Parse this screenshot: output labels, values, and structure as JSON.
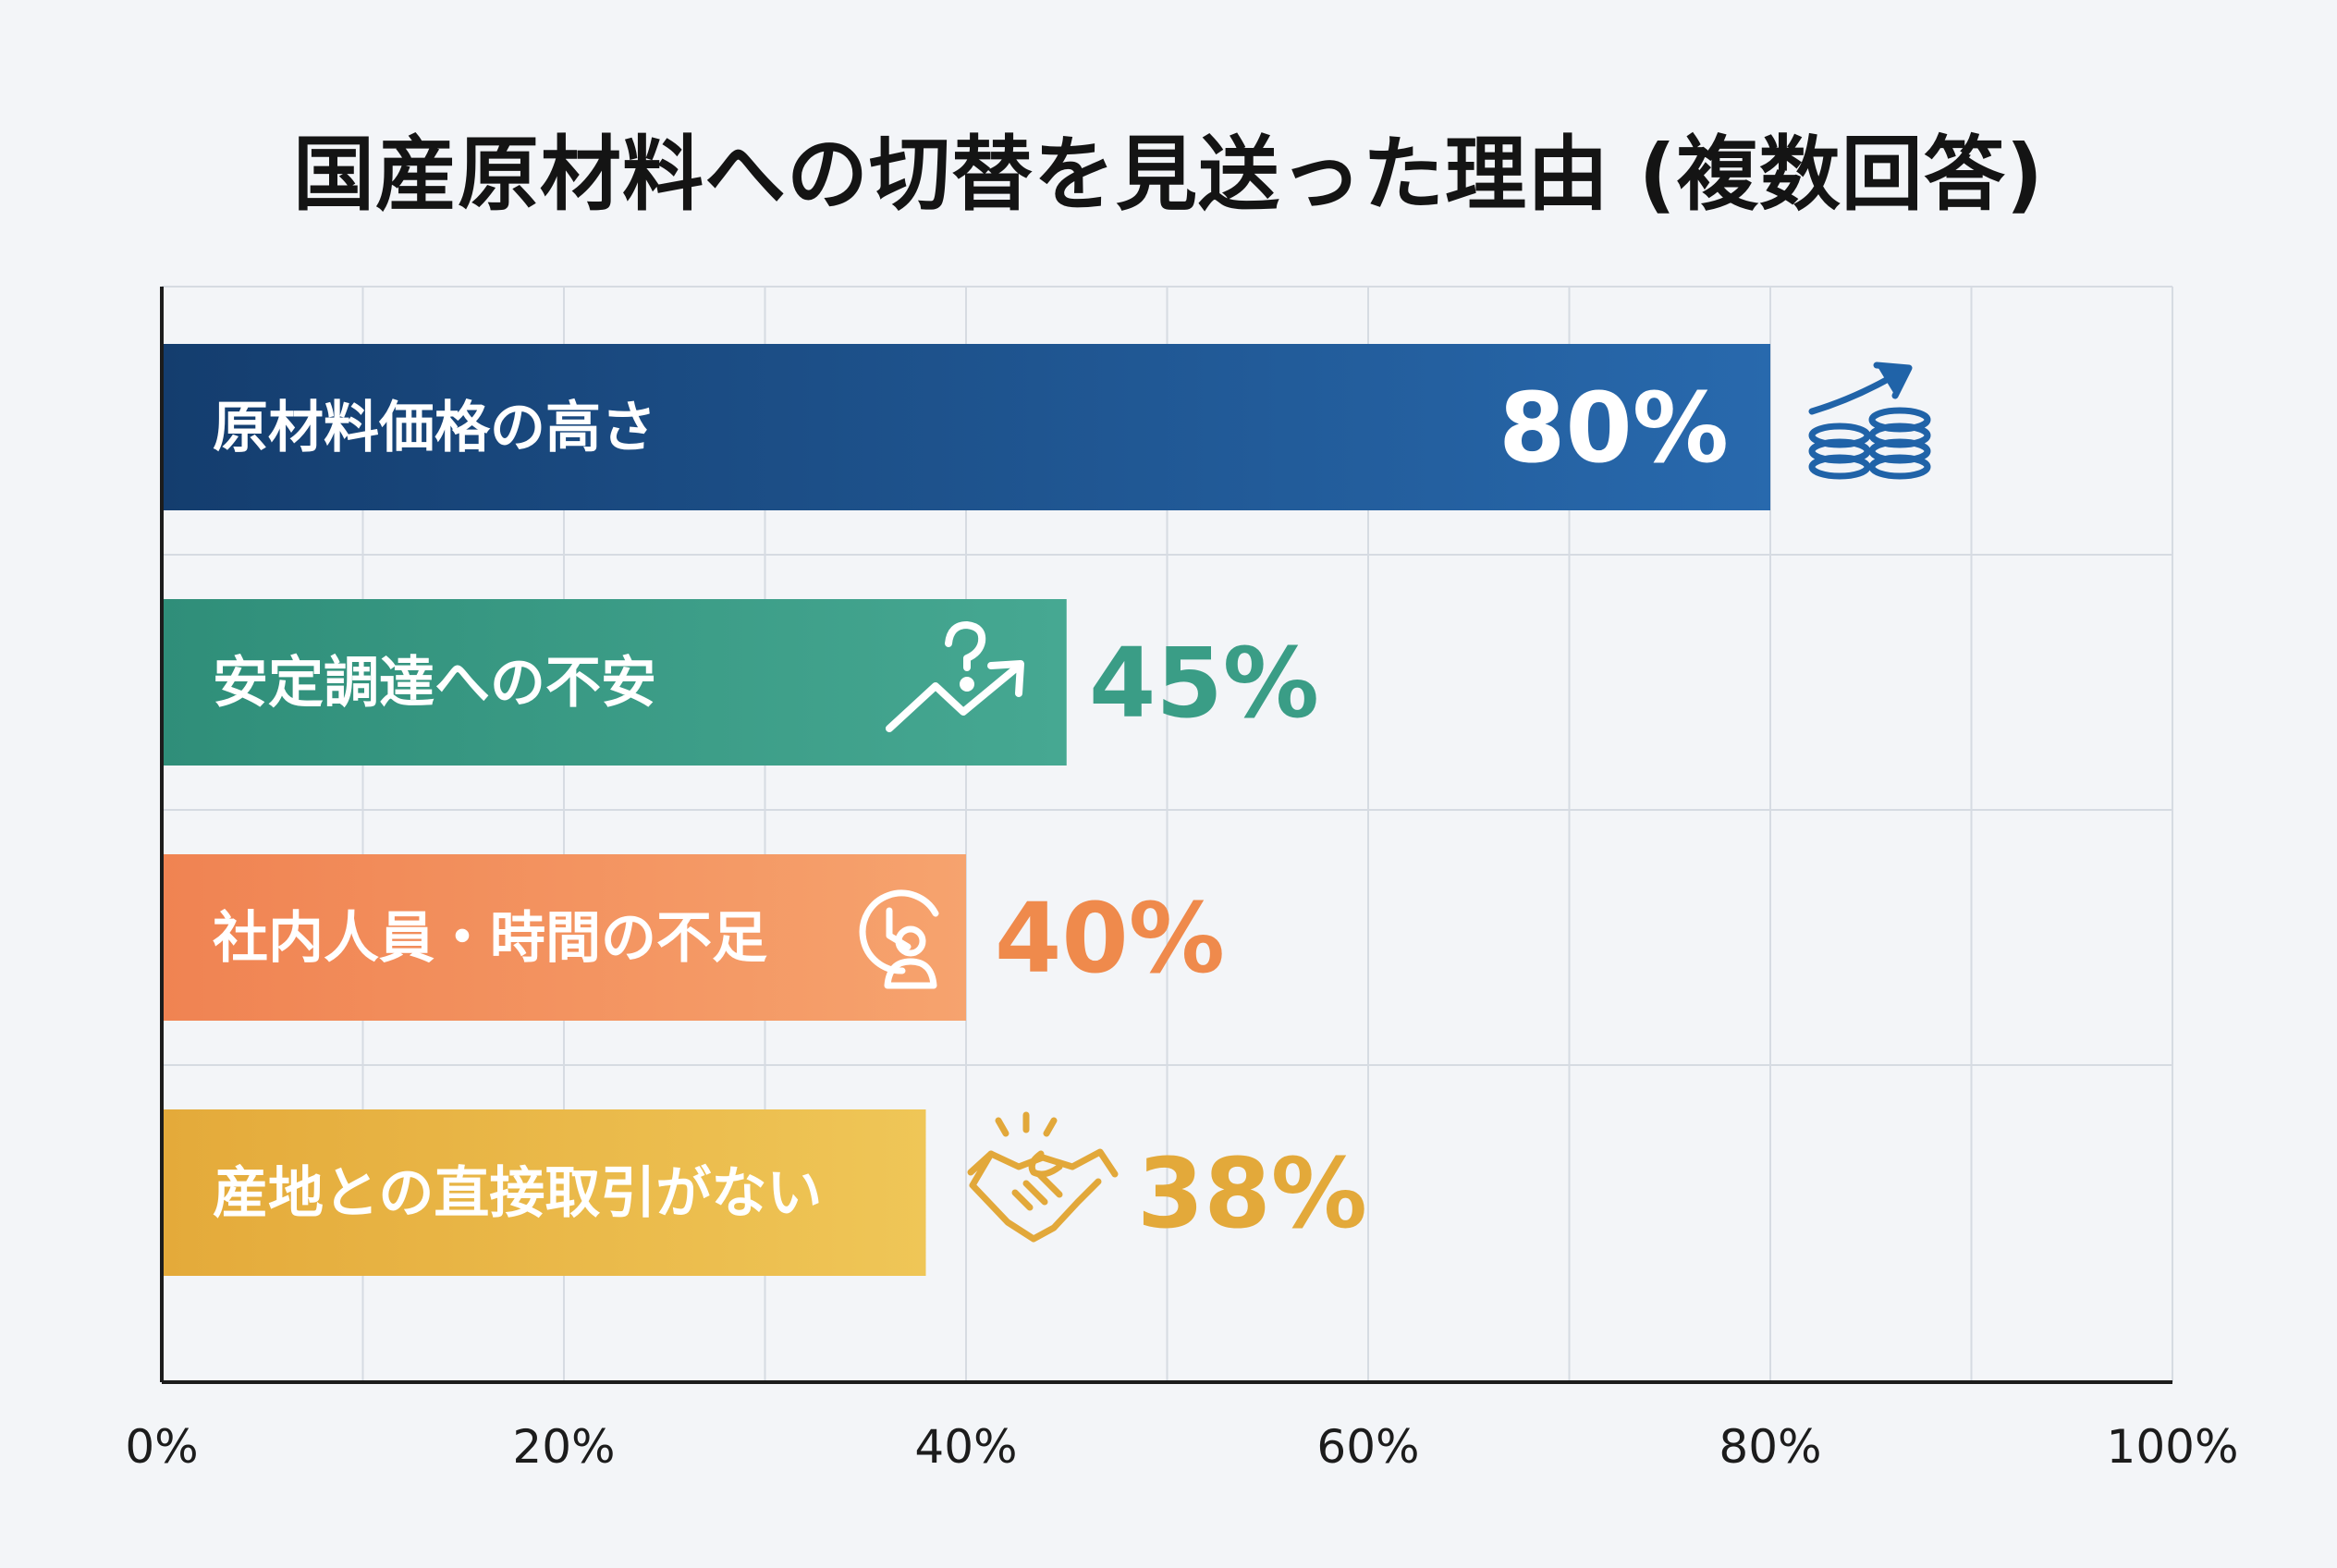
{
  "chart_data": {
    "type": "bar",
    "orientation": "horizontal",
    "title": "国産原材料への切替を見送った理由 (複数回答)",
    "categories": [
      "原材料価格の高さ",
      "安定調達への不安",
      "社内人員・時間の不足",
      "産地との直接取引がない"
    ],
    "values": [
      80,
      45,
      40,
      38
    ],
    "value_labels": [
      "80%",
      "45%",
      "40%",
      "38%"
    ],
    "xlim": [
      0,
      100
    ],
    "x_ticks": [
      "0%",
      "20%",
      "40%",
      "60%",
      "80%",
      "100%"
    ],
    "grid": true,
    "legend": "none",
    "colors": [
      "#1d5a9a",
      "#3a9d86",
      "#f28d58",
      "#eab543"
    ],
    "icons": [
      "coins-growth-icon",
      "uncertain-trend-icon",
      "clock-person-icon",
      "handshake-icon"
    ]
  }
}
